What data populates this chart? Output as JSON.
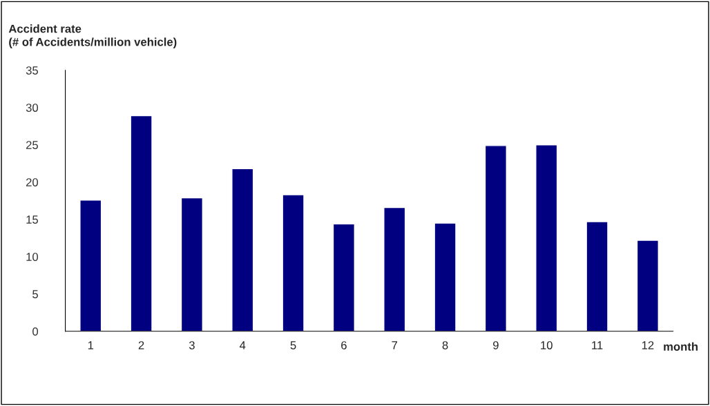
{
  "chart_data": {
    "type": "bar",
    "ylabel": "Accident rate\n(# of Accidents/million vehicle)",
    "xlabel": "month",
    "categories": [
      "1",
      "2",
      "3",
      "4",
      "5",
      "6",
      "7",
      "8",
      "9",
      "10",
      "11",
      "12"
    ],
    "values": [
      17.6,
      28.9,
      17.9,
      21.8,
      18.3,
      14.4,
      16.6,
      14.5,
      24.9,
      25.0,
      14.7,
      12.2
    ],
    "color": "#000080",
    "ylim": [
      0,
      35
    ],
    "yticks": [
      0,
      5,
      10,
      15,
      20,
      25,
      30,
      35
    ],
    "grid": false
  }
}
